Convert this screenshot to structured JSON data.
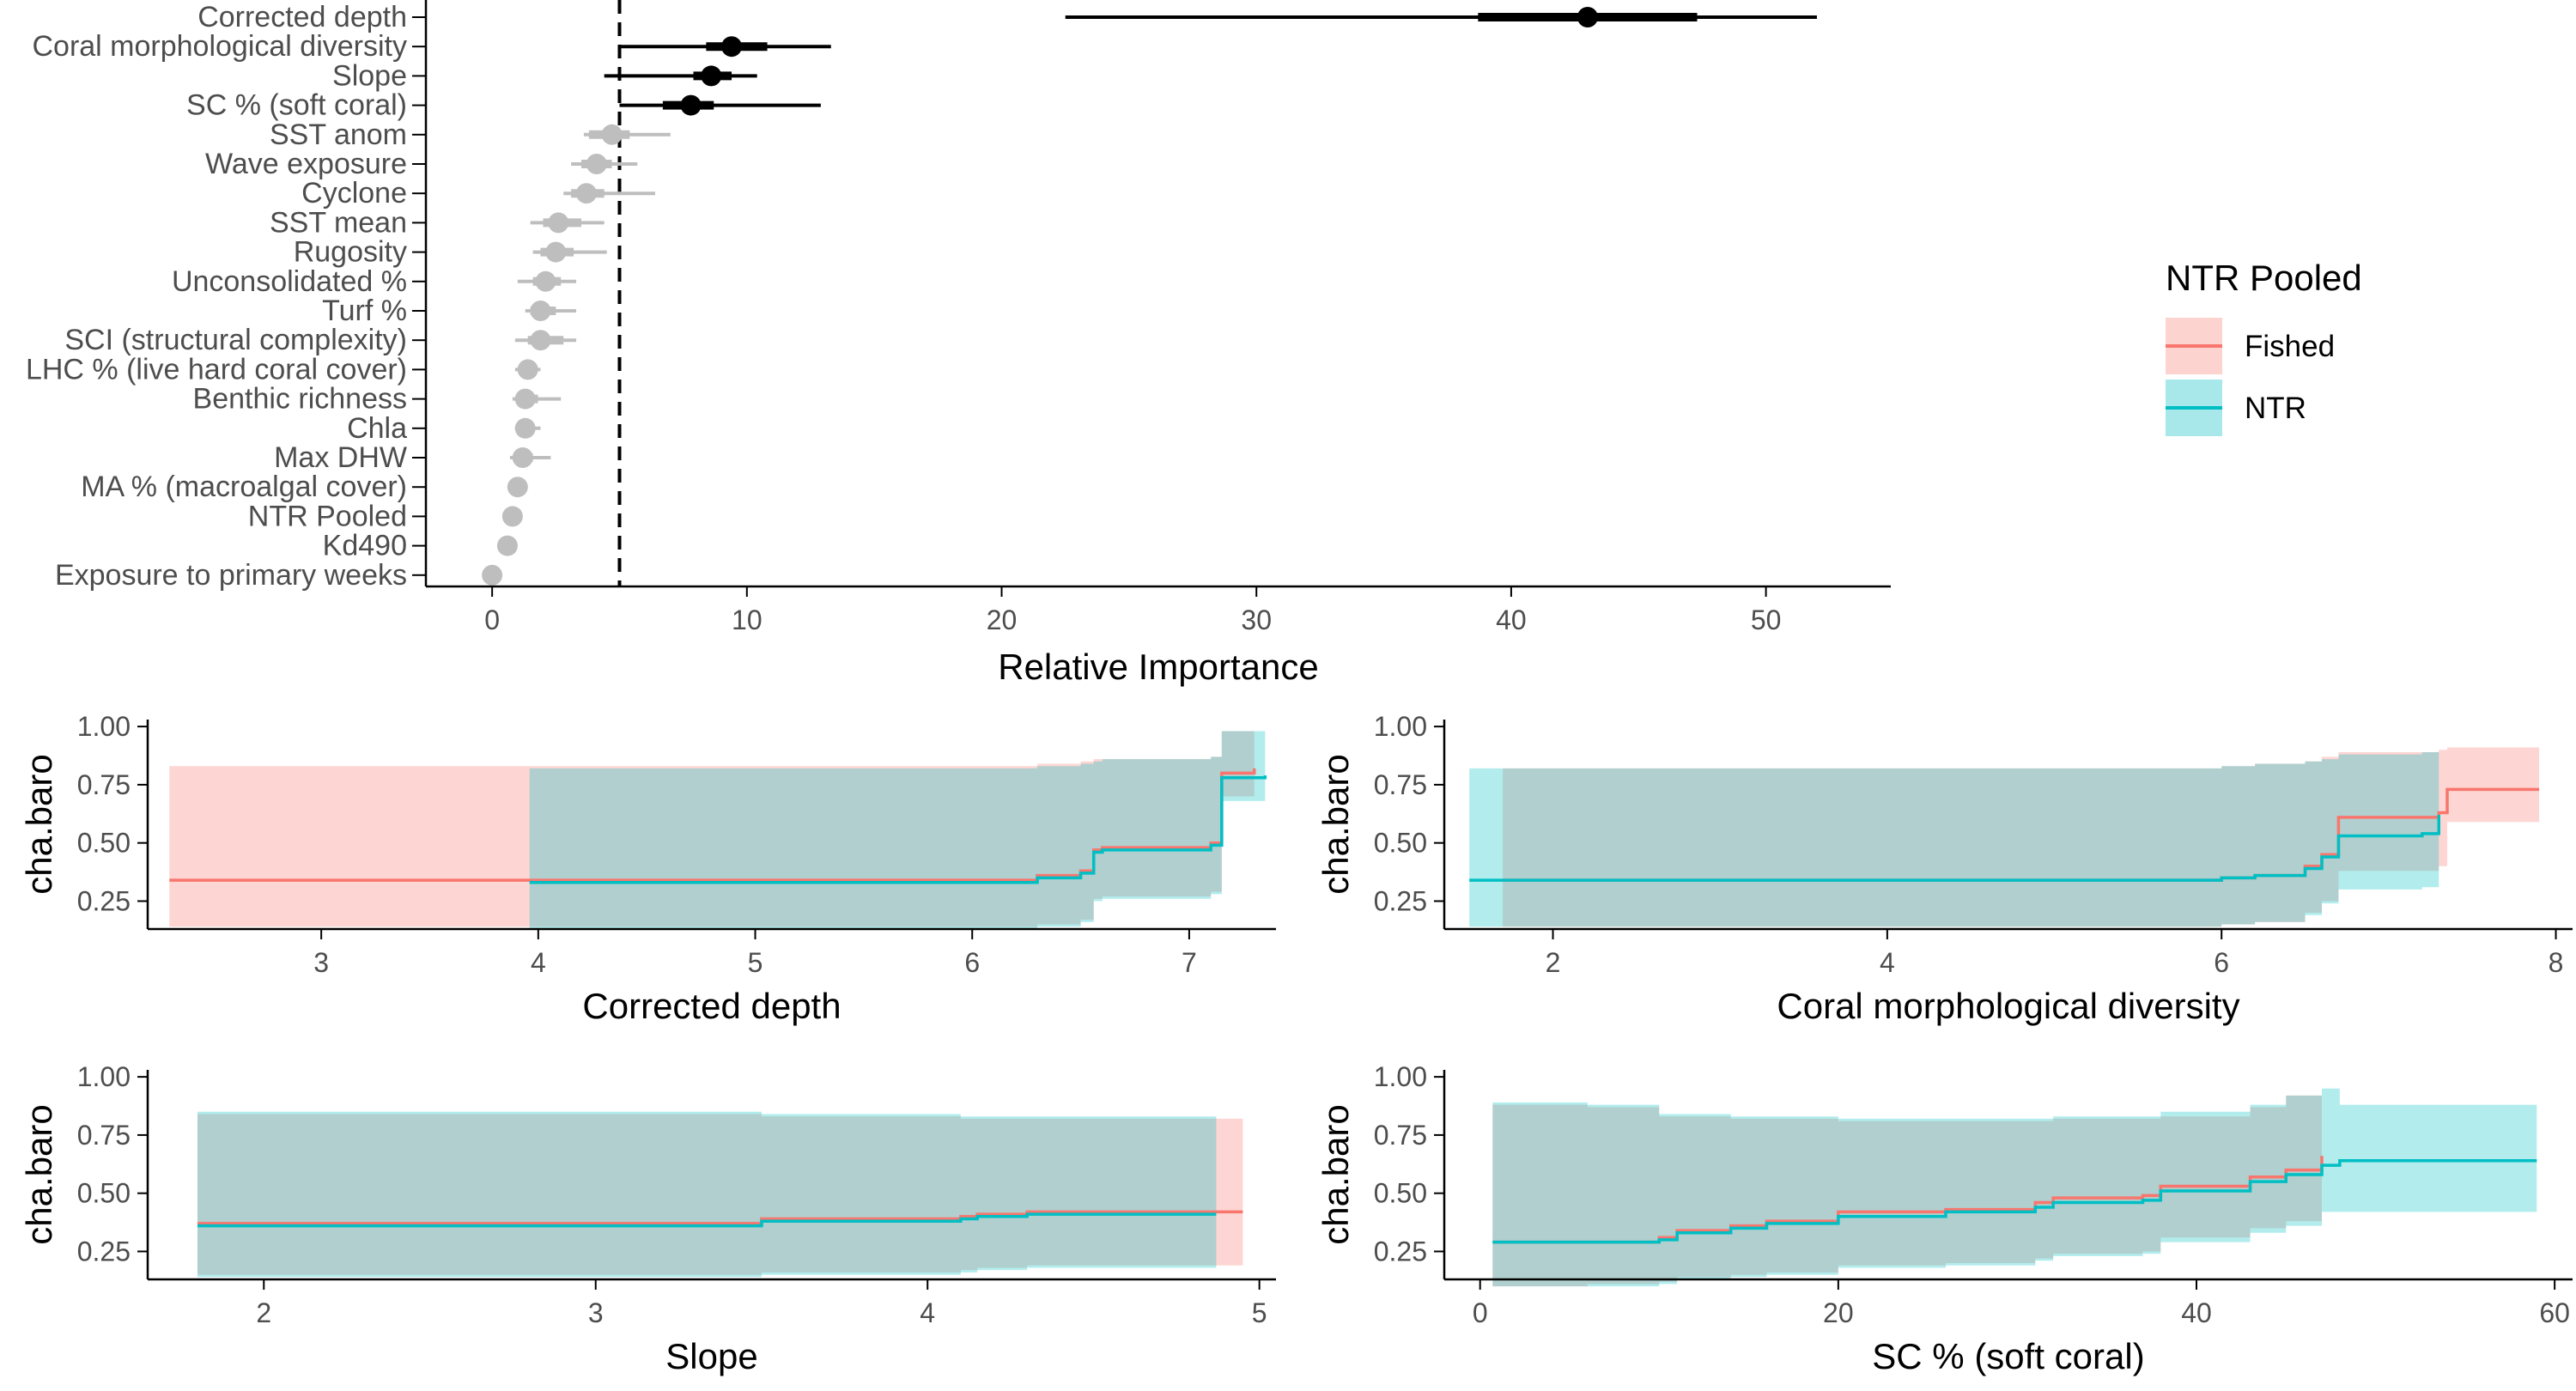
{
  "colors": {
    "fished_line": "#F8766D",
    "fished_fill": "#FDD3D0",
    "ntr_line": "#00BFC4",
    "ntr_fill": "#A9E8EA",
    "overlap_fill": "#ACC6C2",
    "significant": "#000000",
    "nonsignificant": "#BEBEBE",
    "axis": "#000000",
    "tick_label": "#4D4D4D"
  },
  "legend": {
    "title": "NTR Pooled",
    "items": [
      {
        "label": "Fished",
        "series": "fished"
      },
      {
        "label": "NTR",
        "series": "ntr"
      }
    ]
  },
  "chart_data": [
    {
      "type": "dot-interval",
      "xlabel": "Relative Importance",
      "xlim": [
        -2.6,
        54.9
      ],
      "xticks": [
        0,
        10,
        20,
        30,
        40,
        50
      ],
      "threshold": 5,
      "variables": [
        {
          "label": "Corrected depth",
          "value": 43,
          "inner": [
            38.7,
            47.3
          ],
          "outer": [
            22.5,
            52
          ],
          "significant": true
        },
        {
          "label": "Coral morphological diversity",
          "value": 9.4,
          "inner": [
            8.4,
            10.8
          ],
          "outer": [
            5.0,
            13.3
          ],
          "significant": true
        },
        {
          "label": "Slope",
          "value": 8.6,
          "inner": [
            7.9,
            9.4
          ],
          "outer": [
            4.4,
            10.4
          ],
          "significant": true
        },
        {
          "label": "SC % (soft coral)",
          "value": 7.8,
          "inner": [
            6.7,
            8.7
          ],
          "outer": [
            5.0,
            12.9
          ],
          "significant": true
        },
        {
          "label": "SST anom",
          "value": 4.7,
          "inner": [
            3.8,
            5.4
          ],
          "outer": [
            3.6,
            7.0
          ],
          "significant": false
        },
        {
          "label": "Wave exposure",
          "value": 4.1,
          "inner": [
            3.5,
            4.7
          ],
          "outer": [
            3.1,
            5.7
          ],
          "significant": false
        },
        {
          "label": "Cyclone",
          "value": 3.7,
          "inner": [
            3.1,
            4.4
          ],
          "outer": [
            2.8,
            6.4
          ],
          "significant": false
        },
        {
          "label": "SST mean",
          "value": 2.6,
          "inner": [
            2.0,
            3.5
          ],
          "outer": [
            1.5,
            4.4
          ],
          "significant": false
        },
        {
          "label": "Rugosity",
          "value": 2.5,
          "inner": [
            1.9,
            3.2
          ],
          "outer": [
            1.6,
            4.5
          ],
          "significant": false
        },
        {
          "label": "Unconsolidated %",
          "value": 2.1,
          "inner": [
            1.6,
            2.7
          ],
          "outer": [
            1.0,
            3.3
          ],
          "significant": false
        },
        {
          "label": "Turf %",
          "value": 1.9,
          "inner": [
            1.5,
            2.5
          ],
          "outer": [
            1.3,
            3.3
          ],
          "significant": false
        },
        {
          "label": "SCI (structural complexity)",
          "value": 1.9,
          "inner": [
            1.4,
            2.8
          ],
          "outer": [
            0.9,
            3.3
          ],
          "significant": false
        },
        {
          "label": "LHC % (live hard coral cover)",
          "value": 1.4,
          "inner": [
            1.1,
            1.7
          ],
          "outer": [
            0.9,
            1.9
          ],
          "significant": false
        },
        {
          "label": "Benthic richness",
          "value": 1.3,
          "inner": [
            1.0,
            1.8
          ],
          "outer": [
            0.8,
            2.7
          ],
          "significant": false
        },
        {
          "label": "Chla",
          "value": 1.3,
          "inner": [
            1.0,
            1.6
          ],
          "outer": [
            0.9,
            1.9
          ],
          "significant": false
        },
        {
          "label": "Max DHW",
          "value": 1.2,
          "inner": [
            0.9,
            1.6
          ],
          "outer": [
            0.7,
            2.3
          ],
          "significant": false
        },
        {
          "label": "MA % (macroalgal cover)",
          "value": 1.0,
          "inner": [
            0.8,
            1.2
          ],
          "outer": [
            0.7,
            1.3
          ],
          "significant": false
        },
        {
          "label": "NTR Pooled",
          "value": 0.8,
          "inner": [
            0.7,
            0.9
          ],
          "outer": [
            0.6,
            1.0
          ],
          "significant": false
        },
        {
          "label": "Kd490",
          "value": 0.6,
          "inner": [
            0.5,
            0.7
          ],
          "outer": [
            0.5,
            0.8
          ],
          "significant": false
        },
        {
          "label": "Exposure to primary weeks",
          "value": 0.0,
          "inner": [
            0.0,
            0.0
          ],
          "outer": [
            0.0,
            0.1
          ],
          "significant": false
        }
      ]
    },
    {
      "type": "area",
      "xlabel": "Corrected depth",
      "ylabel": "cha.baro",
      "xlim": [
        2.2,
        7.4
      ],
      "ylim": [
        0.13,
        1.03
      ],
      "xticks": [
        3,
        4,
        5,
        6,
        7
      ],
      "yticks": [
        "0.25",
        "0.50",
        "0.75",
        "1.00"
      ],
      "series": [
        {
          "name": "Fished",
          "x": [
            2.3,
            3.96,
            6.3,
            6.5,
            6.56,
            6.6,
            7.1,
            7.15,
            7.3
          ],
          "y": [
            0.34,
            0.34,
            0.36,
            0.38,
            0.47,
            0.48,
            0.5,
            0.8,
            0.82
          ],
          "lower": [
            0.14,
            0.14,
            0.15,
            0.17,
            0.26,
            0.27,
            0.29,
            0.7,
            0.72
          ],
          "upper": [
            0.83,
            0.83,
            0.84,
            0.85,
            0.86,
            0.86,
            0.87,
            0.98,
            1.0
          ]
        },
        {
          "name": "NTR",
          "x": [
            3.96,
            6.3,
            6.5,
            6.56,
            6.6,
            7.1,
            7.15,
            7.35
          ],
          "y": [
            0.33,
            0.35,
            0.37,
            0.46,
            0.47,
            0.49,
            0.78,
            0.79
          ],
          "lower": [
            0.13,
            0.14,
            0.16,
            0.25,
            0.26,
            0.28,
            0.68,
            0.69
          ],
          "upper": [
            0.82,
            0.83,
            0.84,
            0.85,
            0.86,
            0.87,
            0.98,
            1.0
          ]
        }
      ]
    },
    {
      "type": "area",
      "xlabel": "Coral morphological diversity",
      "ylabel": "cha.baro",
      "xlim": [
        1.35,
        8.1
      ],
      "ylim": [
        0.13,
        1.03
      ],
      "xticks": [
        2,
        4,
        6,
        8
      ],
      "yticks": [
        "0.25",
        "0.50",
        "0.75",
        "1.00"
      ],
      "series": [
        {
          "name": "Fished",
          "x": [
            1.7,
            6.0,
            6.2,
            6.5,
            6.6,
            6.7,
            7.3,
            7.35,
            7.9
          ],
          "y": [
            0.34,
            0.35,
            0.36,
            0.4,
            0.45,
            0.61,
            0.63,
            0.73,
            0.73
          ],
          "lower": [
            0.14,
            0.15,
            0.16,
            0.2,
            0.25,
            0.38,
            0.4,
            0.59,
            0.59
          ],
          "upper": [
            0.82,
            0.83,
            0.84,
            0.85,
            0.87,
            0.89,
            0.9,
            0.91,
            0.91
          ]
        },
        {
          "name": "NTR",
          "x": [
            1.5,
            6.0,
            6.2,
            6.5,
            6.6,
            6.7,
            7.2,
            7.3
          ],
          "y": [
            0.34,
            0.35,
            0.36,
            0.39,
            0.44,
            0.53,
            0.54,
            0.62
          ],
          "lower": [
            0.14,
            0.15,
            0.16,
            0.19,
            0.24,
            0.3,
            0.31,
            0.37
          ],
          "upper": [
            0.82,
            0.83,
            0.84,
            0.85,
            0.86,
            0.88,
            0.89,
            0.9
          ]
        }
      ]
    },
    {
      "type": "area",
      "xlabel": "Slope",
      "ylabel": "cha.baro",
      "xlim": [
        1.65,
        5.05
      ],
      "ylim": [
        0.13,
        1.03
      ],
      "xticks": [
        2,
        3,
        4,
        5
      ],
      "yticks": [
        "0.25",
        "0.50",
        "0.75",
        "1.00"
      ],
      "series": [
        {
          "name": "Fished",
          "x": [
            1.8,
            3.0,
            3.5,
            4.1,
            4.15,
            4.3,
            4.95
          ],
          "y": [
            0.37,
            0.37,
            0.39,
            0.4,
            0.41,
            0.42,
            0.42
          ],
          "lower": [
            0.15,
            0.15,
            0.16,
            0.17,
            0.18,
            0.19,
            0.19
          ],
          "upper": [
            0.84,
            0.84,
            0.83,
            0.82,
            0.82,
            0.82,
            0.81
          ]
        },
        {
          "name": "NTR",
          "x": [
            1.8,
            3.0,
            3.5,
            4.1,
            4.15,
            4.3,
            4.87
          ],
          "y": [
            0.36,
            0.36,
            0.38,
            0.39,
            0.4,
            0.41,
            0.41
          ],
          "lower": [
            0.14,
            0.14,
            0.15,
            0.16,
            0.17,
            0.18,
            0.18
          ],
          "upper": [
            0.85,
            0.85,
            0.84,
            0.83,
            0.83,
            0.83,
            0.83
          ]
        }
      ]
    },
    {
      "type": "area",
      "xlabel": "SC % (soft coral)",
      "ylabel": "cha.baro",
      "xlim": [
        -2,
        61
      ],
      "ylim": [
        0.13,
        1.03
      ],
      "xticks": [
        0,
        20,
        40,
        60
      ],
      "yticks": [
        "0.25",
        "0.50",
        "0.75",
        "1.00"
      ],
      "series": [
        {
          "name": "Fished",
          "x": [
            0.7,
            6,
            10,
            11,
            14,
            16,
            20,
            26,
            31,
            32,
            37,
            38,
            43,
            45,
            47
          ],
          "y": [
            0.29,
            0.29,
            0.31,
            0.34,
            0.36,
            0.38,
            0.42,
            0.43,
            0.46,
            0.48,
            0.49,
            0.53,
            0.57,
            0.6,
            0.66
          ],
          "lower": [
            0.1,
            0.11,
            0.12,
            0.14,
            0.15,
            0.16,
            0.19,
            0.2,
            0.22,
            0.24,
            0.25,
            0.31,
            0.35,
            0.38,
            0.44
          ],
          "upper": [
            0.88,
            0.87,
            0.83,
            0.83,
            0.82,
            0.82,
            0.81,
            0.81,
            0.81,
            0.82,
            0.82,
            0.83,
            0.87,
            0.92,
            0.98
          ]
        },
        {
          "name": "NTR",
          "x": [
            0.7,
            6,
            10,
            11,
            14,
            16,
            20,
            26,
            31,
            32,
            37,
            38,
            43,
            45,
            47,
            48,
            59
          ],
          "y": [
            0.29,
            0.29,
            0.3,
            0.33,
            0.35,
            0.37,
            0.4,
            0.42,
            0.44,
            0.46,
            0.47,
            0.51,
            0.55,
            0.58,
            0.62,
            0.64,
            0.64
          ],
          "lower": [
            0.1,
            0.1,
            0.11,
            0.13,
            0.14,
            0.15,
            0.18,
            0.19,
            0.21,
            0.23,
            0.24,
            0.29,
            0.33,
            0.36,
            0.42,
            0.42,
            0.42
          ],
          "upper": [
            0.89,
            0.88,
            0.84,
            0.84,
            0.83,
            0.83,
            0.82,
            0.82,
            0.82,
            0.83,
            0.83,
            0.85,
            0.88,
            0.92,
            0.95,
            0.88,
            0.88
          ]
        }
      ]
    }
  ]
}
